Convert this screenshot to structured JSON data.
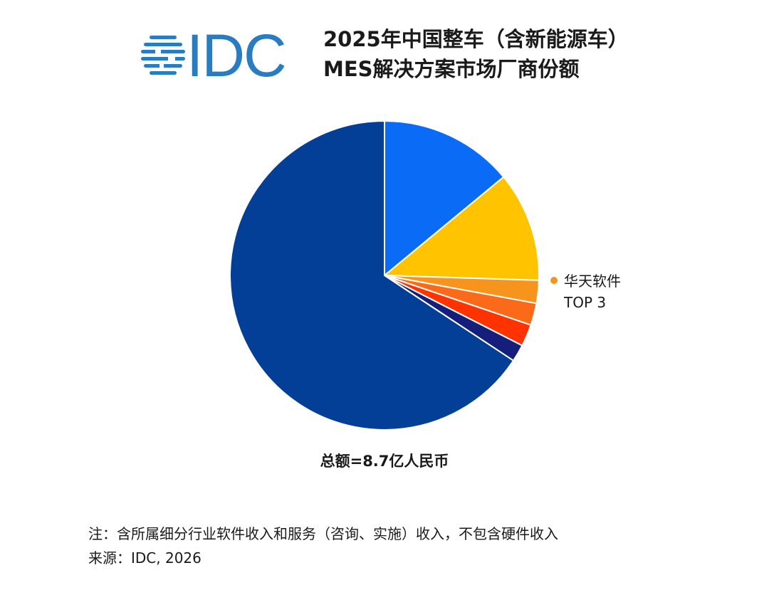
{
  "logo": {
    "text": "IDC",
    "color": "#2a7cc1"
  },
  "title": {
    "line1": "2025年中国整车（含新能源车）",
    "line2": "MES解决方案市场厂商份额"
  },
  "chart_data": {
    "type": "pie",
    "slices": [
      {
        "value": 14.0,
        "color": "#0a6cf6"
      },
      {
        "value": 11.5,
        "color": "#ffc300"
      },
      {
        "value": 2.4,
        "color": "#f7941d"
      },
      {
        "value": 2.3,
        "color": "#fb6a19"
      },
      {
        "value": 2.3,
        "color": "#ff3300"
      },
      {
        "value": 1.8,
        "color": "#151e7a"
      },
      {
        "value": 65.7,
        "color": "#033f96"
      }
    ],
    "annotation": {
      "line1": "华天软件",
      "line2": "TOP 3",
      "dot_color": "#f7941d"
    },
    "total_label": "总额=8.7亿人民币"
  },
  "footer": {
    "note": "注：含所属细分行业软件收入和服务（咨询、实施）收入，不包含硬件收入",
    "source": "来源：IDC, 2026"
  }
}
